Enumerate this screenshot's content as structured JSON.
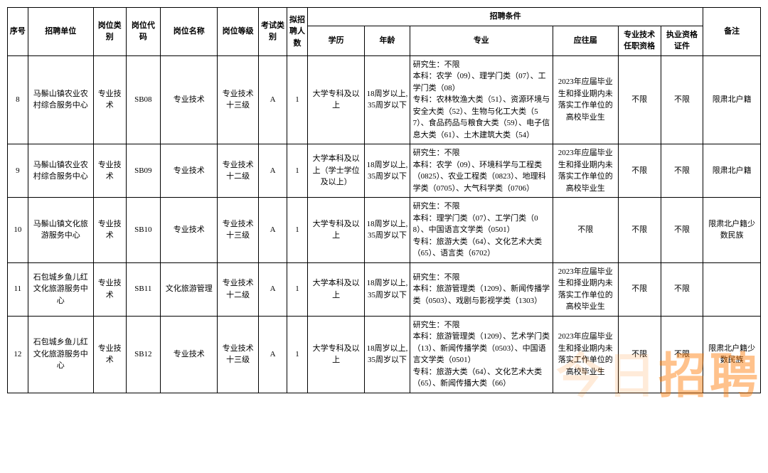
{
  "headers": {
    "seq": "序号",
    "unit": "招聘单位",
    "type": "岗位类别",
    "code": "岗位代码",
    "name": "岗位名称",
    "level": "岗位等级",
    "exam": "考试类别",
    "num": "拟招聘人数",
    "group": "招聘条件",
    "edu": "学历",
    "age": "年龄",
    "major": "专业",
    "grad": "应往届",
    "qual1": "专业技术任职资格",
    "qual2": "执业资格证件",
    "note": "备注"
  },
  "rows": [
    {
      "seq": "8",
      "unit": "马鬃山镇农业农村综合服务中心",
      "type": "专业技术",
      "code": "SB08",
      "name": "专业技术",
      "level": "专业技术十三级",
      "exam": "A",
      "num": "1",
      "edu": "大学专科及以上",
      "age": "18周岁以上,35周岁以下",
      "major": "研究生：不限\n本科：农学（09）、理学门类（07）、工学门类（08）\n专科：农林牧渔大类（51）、资源环境与安全大类（52）、生物与化工大类（57）、食品药品与粮食大类（59）、电子信息大类（61）、土木建筑大类（54）",
      "grad": "2023年应届毕业生和择业期内未落实工作单位的高校毕业生",
      "qual1": "不限",
      "qual2": "不限",
      "note": "限肃北户籍"
    },
    {
      "seq": "9",
      "unit": "马鬃山镇农业农村综合服务中心",
      "type": "专业技术",
      "code": "SB09",
      "name": "专业技术",
      "level": "专业技术十二级",
      "exam": "A",
      "num": "1",
      "edu": "大学本科及以上（学士学位及以上）",
      "age": "18周岁以上,35周岁以下",
      "major": "研究生：不限\n本科：农学（09）、环境科学与工程类（0825）、农业工程类（0823）、地理科学类（0705）、大气科学类（0706）",
      "grad": "2023年应届毕业生和择业期内未落实工作单位的高校毕业生",
      "qual1": "不限",
      "qual2": "不限",
      "note": "限肃北户籍"
    },
    {
      "seq": "10",
      "unit": "马鬃山镇文化旅游服务中心",
      "type": "专业技术",
      "code": "SB10",
      "name": "专业技术",
      "level": "专业技术十三级",
      "exam": "A",
      "num": "1",
      "edu": "大学专科及以上",
      "age": "18周岁以上,35周岁以下",
      "major": "研究生：不限\n本科：理学门类（07）、工学门类（08）、中国语言文学类（0501）\n专科：旅游大类（64）、文化艺术大类（65）、语言类（6702）",
      "grad": "不限",
      "qual1": "不限",
      "qual2": "不限",
      "note": "限肃北户籍少数民族"
    },
    {
      "seq": "11",
      "unit": "石包城乡鱼儿红文化旅游服务中心",
      "type": "专业技术",
      "code": "SB11",
      "name": "文化旅游管理",
      "level": "专业技术十二级",
      "exam": "A",
      "num": "1",
      "edu": "大学本科及以上",
      "age": "18周岁以上,35周岁以下",
      "major": "研究生：不限\n本科：旅游管理类（1209）、新闻传播学类（0503）、戏剧与影视学类（1303）",
      "grad": "2023年应届毕业生和择业期内未落实工作单位的高校毕业生",
      "qual1": "不限",
      "qual2": "不限",
      "note": ""
    },
    {
      "seq": "12",
      "unit": "石包城乡鱼儿红文化旅游服务中心",
      "type": "专业技术",
      "code": "SB12",
      "name": "专业技术",
      "level": "专业技术十三级",
      "exam": "A",
      "num": "1",
      "edu": "大学专科及以上",
      "age": "18周岁以上,35周岁以下",
      "major": "研究生：不限\n本科：旅游管理类（1209）、艺术学门类（13）、新闻传播学类（0503）、中国语言文学类（0501）\n专科：旅游大类（64）、文化艺术大类（65）、新闻传播大类（66）",
      "grad": "2023年应届毕业生和择业期内未落实工作单位的高校毕业生",
      "qual1": "不限",
      "qual2": "不限",
      "note": "限肃北户籍少数民族"
    }
  ],
  "watermark": {
    "part1": "今日",
    "part2": "招聘"
  }
}
